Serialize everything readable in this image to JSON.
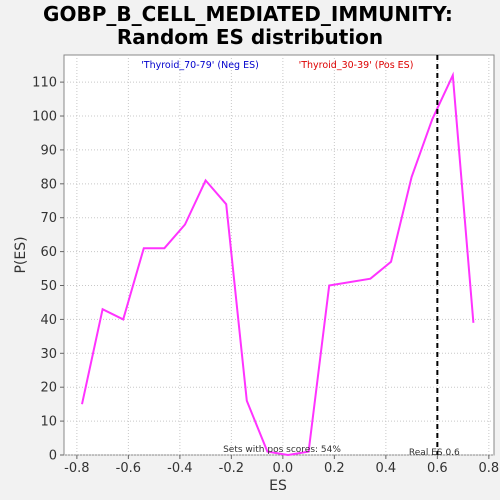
{
  "chart_data": {
    "type": "line",
    "title_line1": "GOBP_B_CELL_MEDIATED_IMMUNITY:",
    "title_line2": "Random ES distribution",
    "xlabel": "ES",
    "ylabel": "P(ES)",
    "xlim": [
      -0.85,
      0.82
    ],
    "ylim": [
      0,
      118
    ],
    "xticks": [
      -0.8,
      -0.6,
      -0.4,
      -0.2,
      0.0,
      0.2,
      0.4,
      0.6,
      0.8
    ],
    "xtick_labels": [
      "-0.8",
      "-0.6",
      "-0.4",
      "-0.2",
      "0.0",
      "0.2",
      "0.4",
      "0.6",
      "0.8"
    ],
    "yticks": [
      0,
      10,
      20,
      30,
      40,
      50,
      60,
      70,
      80,
      90,
      100,
      110
    ],
    "ytick_labels": [
      "0",
      "10",
      "20",
      "30",
      "40",
      "50",
      "60",
      "70",
      "80",
      "90",
      "100",
      "110"
    ],
    "grid": true,
    "series": [
      {
        "color": "#ff33ff",
        "x": [
          -0.78,
          -0.7,
          -0.62,
          -0.54,
          -0.46,
          -0.38,
          -0.3,
          -0.22,
          -0.14,
          -0.06,
          0.02,
          0.1,
          0.18,
          0.34,
          0.42,
          0.5,
          0.58,
          0.66,
          0.74
        ],
        "y": [
          15,
          43,
          40,
          61,
          61,
          68,
          81,
          74,
          16,
          1,
          0,
          1,
          50,
          52,
          57,
          82,
          99,
          112,
          39
        ]
      }
    ],
    "legend": {
      "neg_label": "'Thyroid_70-79' (Neg ES)",
      "neg_color": "#0000cc",
      "pos_label": "'Thyroid_30-39' (Pos ES)",
      "pos_color": "#dd0000"
    },
    "real_es": {
      "value": 0.6,
      "label": "Real ES 0.6"
    },
    "annotation": "Sets with pos scores: 54%"
  }
}
